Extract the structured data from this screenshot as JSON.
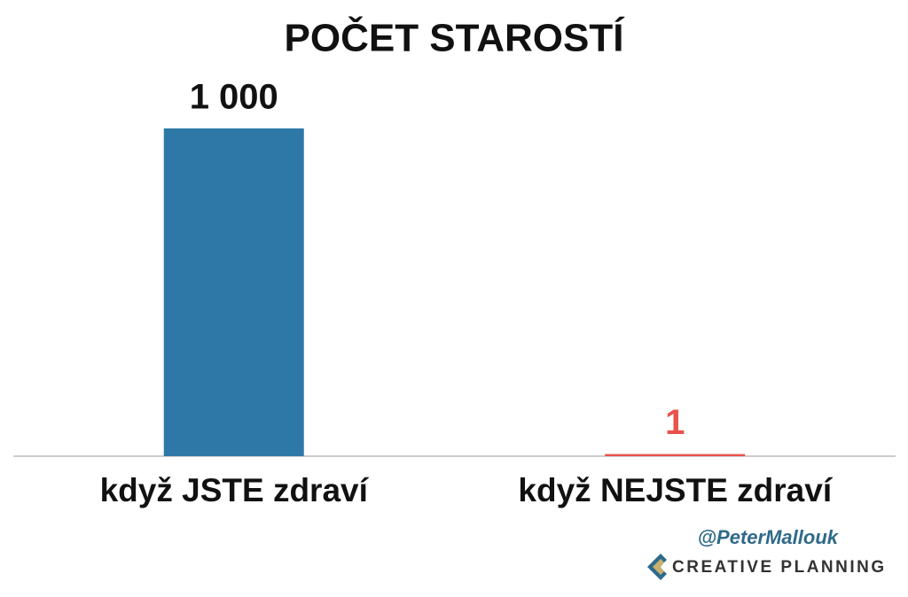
{
  "chart_data": {
    "type": "bar",
    "title": "POČET STAROSTÍ",
    "categories": [
      "když JSTE zdraví",
      "když NEJSTE zdraví"
    ],
    "values": [
      1000,
      1
    ],
    "value_labels": [
      "1 000",
      "1"
    ],
    "colors": [
      "#2e78a8",
      "#e8524a"
    ]
  },
  "handle": "@PeterMallouk",
  "brand": "CREATIVE PLANNING"
}
